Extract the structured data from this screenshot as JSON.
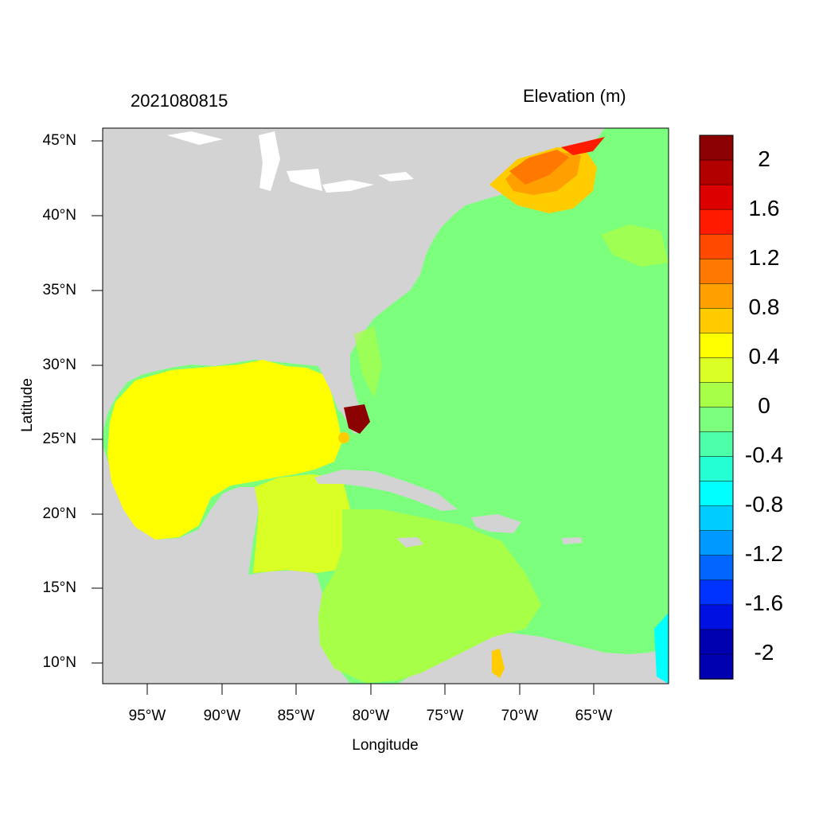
{
  "header": {
    "left_title": "2021080815",
    "right_title": "Elevation (m)"
  },
  "axes": {
    "xlabel": "Longitude",
    "ylabel": "Latitude",
    "x_ticks": [
      "95°W",
      "90°W",
      "85°W",
      "80°W",
      "75°W",
      "70°W",
      "65°W"
    ],
    "y_ticks": [
      "45°N",
      "40°N",
      "35°N",
      "30°N",
      "25°N",
      "20°N",
      "15°N",
      "10°N"
    ]
  },
  "map": {
    "extent_lon": [
      -98,
      -60
    ],
    "extent_lat": [
      8.5,
      46
    ],
    "land_color": "#d3d3d3",
    "field": "water surface elevation",
    "units": "m"
  },
  "colorbar": {
    "labels": [
      "2",
      "1.6",
      "1.2",
      "0.8",
      "0.4",
      "0",
      "-0.4",
      "-0.8",
      "-1.2",
      "-1.6",
      "-2"
    ],
    "colors": [
      "#8b0000",
      "#b20000",
      "#dd0000",
      "#ff1a00",
      "#ff4a00",
      "#ff7800",
      "#ffa000",
      "#ffcc00",
      "#ffff00",
      "#d9ff24",
      "#a8ff48",
      "#7cff7c",
      "#4dffa8",
      "#24ffd4",
      "#00ffff",
      "#00ccff",
      "#0099ff",
      "#0066ff",
      "#0033ff",
      "#0010e0",
      "#0000b0",
      "#0000b0"
    ]
  }
}
